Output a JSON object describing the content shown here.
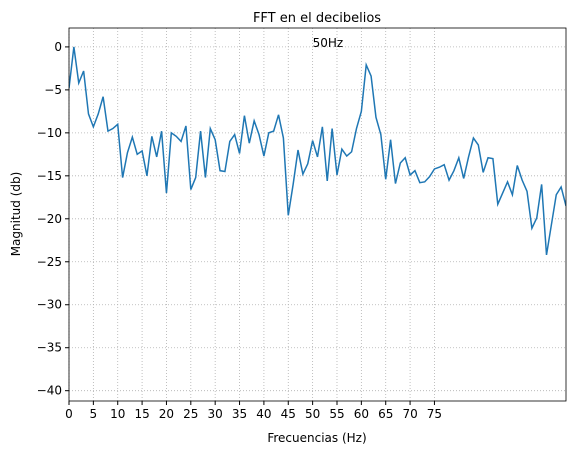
{
  "chart_data": {
    "type": "line",
    "title": "FFT en el decibelios",
    "xlabel": "Frecuencias (Hz)",
    "ylabel": "Magnitud (db)",
    "annotation": {
      "text": "50Hz",
      "x": 50,
      "y": 0
    },
    "color": "#1f77b4",
    "grid": true,
    "x": [
      0,
      1,
      2,
      3,
      4,
      5,
      6,
      7,
      8,
      9,
      10,
      11,
      12,
      13,
      14,
      15,
      16,
      17,
      18,
      19,
      20,
      21,
      22,
      23,
      24,
      25,
      26,
      27,
      28,
      29,
      30,
      31,
      32,
      33,
      34,
      35,
      36,
      37,
      38,
      39,
      40,
      41,
      42,
      43,
      44,
      45,
      46,
      47,
      48,
      49,
      50,
      51,
      52,
      53,
      54,
      55,
      56,
      57,
      58,
      59,
      60,
      61,
      62,
      63,
      64,
      65,
      66,
      67,
      68,
      69,
      70,
      71,
      72,
      73,
      74,
      75,
      76,
      77,
      78,
      79,
      80,
      81,
      82,
      83,
      84,
      85,
      86,
      87,
      88,
      89,
      90,
      91,
      92,
      93,
      94,
      95,
      96,
      97,
      98,
      99,
      100,
      101,
      102
    ],
    "values": [
      -4.8,
      0,
      -4.2,
      -2.8,
      -7.8,
      -9.3,
      -7.8,
      -5.8,
      -9.8,
      -9.5,
      -9,
      -15.2,
      -12.3,
      -10.5,
      -12.5,
      -12.1,
      -15,
      -10.4,
      -12.8,
      -9.8,
      -17,
      -10,
      -10.4,
      -11,
      -9.2,
      -16.6,
      -15.2,
      -9.8,
      -15.2,
      -9.5,
      -10.8,
      -14.4,
      -14.5,
      -11,
      -10.2,
      -12.4,
      -8,
      -11.2,
      -8.6,
      -10.2,
      -12.7,
      -10,
      -9.8,
      -7.9,
      -10.6,
      -19.6,
      -16,
      -12,
      -14.8,
      -13.6,
      -10.9,
      -12.8,
      -9.3,
      -15.6,
      -9.5,
      -14.9,
      -11.9,
      -12.7,
      -12.2,
      -9.5,
      -7.5,
      -2.1,
      -3.4,
      -8.2,
      -10.2,
      -15.4,
      -10.8,
      -15.9,
      -13.5,
      -12.9,
      -14.9,
      -14.4,
      -15.8,
      -15.7,
      -15.1,
      -14.2,
      -14,
      -13.7,
      -15.5,
      -14.4,
      -12.9,
      -15.3,
      -12.8,
      -10.6,
      -11.4,
      -14.6,
      -12.9,
      -13,
      -18.3,
      -17,
      -15.7,
      -17.2,
      -13.8,
      -15.5,
      -16.8,
      -21.1,
      -19.9,
      -16,
      -24.2,
      -20.7,
      -17.2,
      -16.3,
      -18.5
    ],
    "xlim": [
      0,
      102
    ],
    "xticks": [
      0,
      5,
      10,
      15,
      20,
      25,
      30,
      35,
      40,
      45,
      50,
      55,
      60,
      65,
      70,
      75
    ],
    "ylim": [
      -41.2,
      2.2
    ],
    "yticks": [
      0,
      {
        "value": -5,
        "label": "−5"
      },
      {
        "value": -10,
        "label": "−10"
      },
      {
        "value": -15,
        "label": "−15"
      },
      {
        "value": -20,
        "label": "−20"
      },
      {
        "value": -25,
        "label": "−25"
      },
      {
        "value": -30,
        "label": "−30"
      },
      {
        "value": -35,
        "label": "−35"
      },
      {
        "value": -40,
        "label": "−40"
      }
    ]
  }
}
